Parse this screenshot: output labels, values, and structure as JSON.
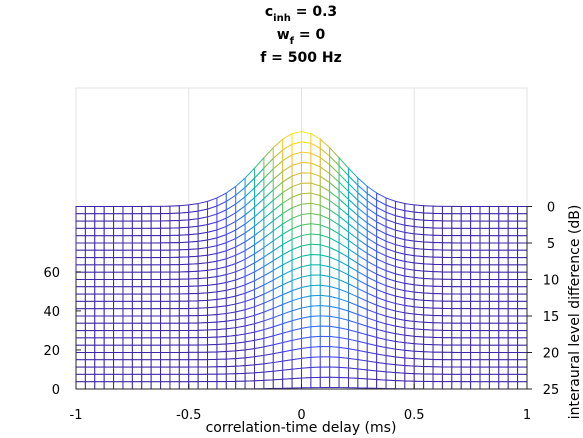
{
  "chart_data": {
    "type": "surface-mesh",
    "title_lines": [
      {
        "main": "c",
        "sub": "inh",
        "rest": " = 0.3"
      },
      {
        "main": "w",
        "sub": "f",
        "rest": " = 0"
      },
      {
        "main": "f = 500 Hz",
        "sub": "",
        "rest": ""
      }
    ],
    "xlabel": "correlation-time delay (ms)",
    "ylabel_right": "interaural level difference (dB)",
    "x_ticks": [
      "-1",
      "-0.5",
      "0",
      "0.5",
      "1"
    ],
    "x_tick_values": [
      -1,
      -0.5,
      0,
      0.5,
      1
    ],
    "ild_ticks": [
      "0",
      "5",
      "10",
      "15",
      "20",
      "25"
    ],
    "ild_tick_values": [
      0,
      5,
      10,
      15,
      20,
      25
    ],
    "z_ticks": [
      "0",
      "20",
      "40",
      "60"
    ],
    "z_tick_values": [
      0,
      20,
      40,
      60
    ],
    "xlim": [
      -1,
      1
    ],
    "ild_lim": [
      0,
      25
    ],
    "zlim": [
      0,
      100
    ],
    "grid": true,
    "colormap": "parula",
    "colormap_colors": [
      "#3e26a8",
      "#4745f4",
      "#2f79f8",
      "#1aa2d4",
      "#0cbaa0",
      "#56c367",
      "#bcbd40",
      "#f9c234",
      "#f9fb15"
    ],
    "surface": {
      "x_samples": 49,
      "ild_samples": 26,
      "baseline": 66,
      "peak_at_0dB": 90,
      "peak_center_ms_at_0dB": 0,
      "peak_center_ms_at_25dB": 0.12,
      "peak_width_ms": 0.18
    }
  }
}
